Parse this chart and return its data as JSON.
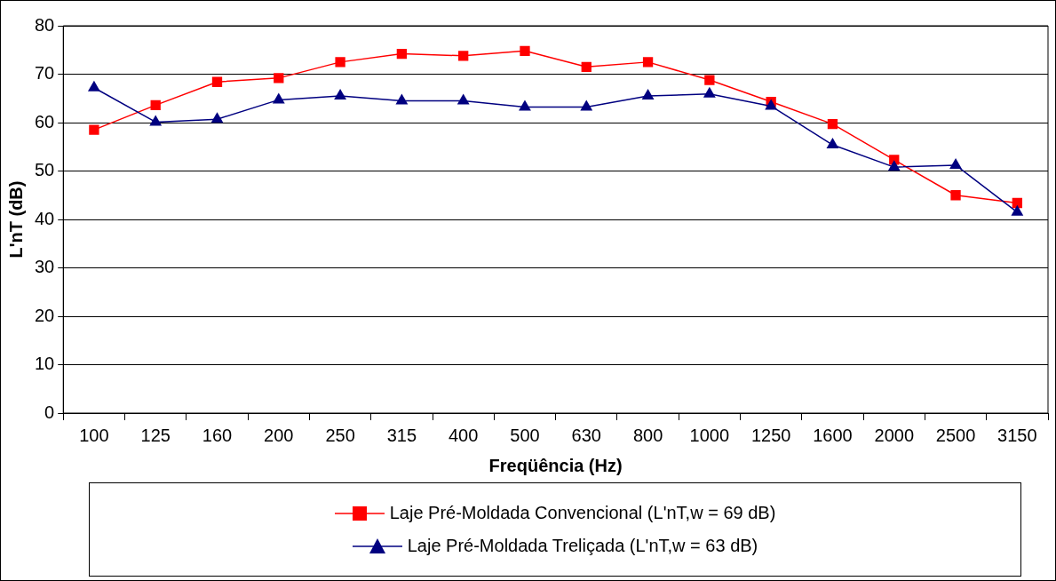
{
  "chart_data": {
    "type": "line",
    "xlabel": "Freqüência (Hz)",
    "ylabel": "L'nT (dB)",
    "categories": [
      "100",
      "125",
      "160",
      "200",
      "250",
      "315",
      "400",
      "500",
      "630",
      "800",
      "1000",
      "1250",
      "1600",
      "2000",
      "2500",
      "3150"
    ],
    "ylim": [
      0,
      80
    ],
    "yticks": [
      0,
      10,
      20,
      30,
      40,
      50,
      60,
      70,
      80
    ],
    "grid": "y",
    "legend": "bottom",
    "series": [
      {
        "name": "Laje Pré-Moldada Convencional (L'nT,w = 69 dB)",
        "color": "#ff0000",
        "marker": "square",
        "values": [
          58.5,
          63.6,
          68.4,
          69.2,
          72.5,
          74.2,
          73.8,
          74.8,
          71.5,
          72.5,
          68.8,
          64.3,
          59.7,
          52.3,
          45,
          43.4
        ]
      },
      {
        "name": "Laje Pré-Moldada Treliçada (L'nT,w = 63 dB)",
        "color": "#000080",
        "marker": "triangle",
        "values": [
          67.2,
          60.1,
          60.7,
          64.7,
          65.5,
          64.5,
          64.5,
          63.2,
          63.2,
          65.5,
          65.9,
          63.4,
          55.4,
          50.8,
          51.2,
          41.5
        ]
      }
    ]
  }
}
